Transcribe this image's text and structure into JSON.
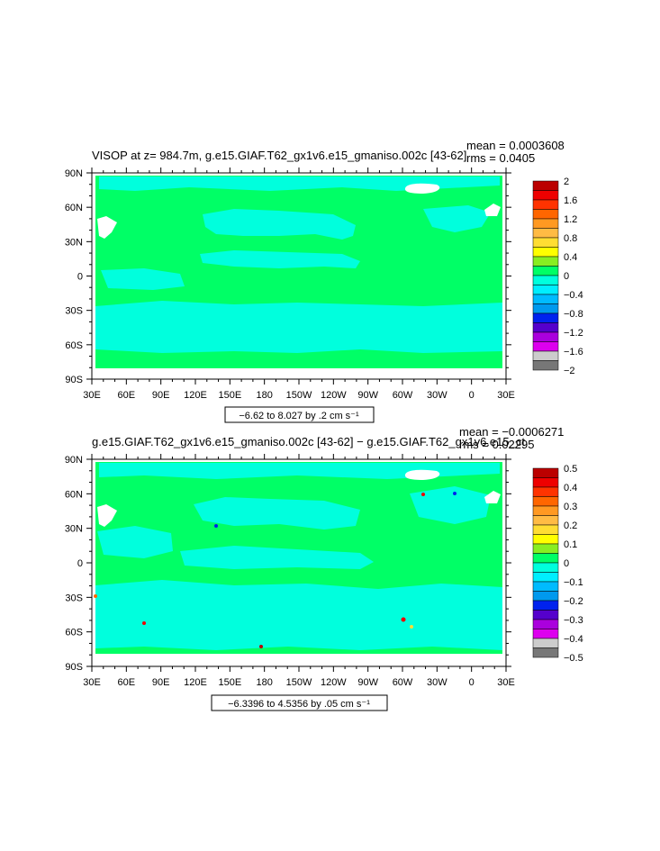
{
  "colors": {
    "green": "#00ff66",
    "cyan": "#00ffdd",
    "land": "#ffffff",
    "frame": "#000000"
  },
  "chart_data": [
    {
      "type": "heatmap",
      "title": "VISOP at z= 984.7m, g.e15.GIAF.T62_gx1v6.e15_gmaniso.002c [43-62]",
      "stats": {
        "mean": "mean = 0.0003608",
        "rms": "rms = 0.0405"
      },
      "range_label": "−6.62 to 8.027 by .2 cm s⁻¹",
      "x_ticks": [
        "30E",
        "60E",
        "90E",
        "120E",
        "150E",
        "180",
        "150W",
        "120W",
        "90W",
        "60W",
        "30W",
        "0",
        "30E"
      ],
      "y_ticks": [
        "90N",
        "60N",
        "30N",
        "0",
        "30S",
        "60S",
        "90S"
      ],
      "xlim": [
        30,
        390
      ],
      "ylim": [
        -90,
        90
      ],
      "colorbar": {
        "labels": [
          "2",
          "1.6",
          "1.2",
          "0.8",
          "0.4",
          "0",
          "−0.4",
          "−0.8",
          "−1.2",
          "−1.6",
          "−2"
        ],
        "colors": [
          "#bb0000",
          "#ee0000",
          "#ff3300",
          "#ff6600",
          "#ff9922",
          "#ffbb44",
          "#ffdd33",
          "#ffff00",
          "#88ee22",
          "#00ff66",
          "#00ffdd",
          "#00eeff",
          "#00bbff",
          "#0099ee",
          "#0022ee",
          "#5500cc",
          "#aa00dd",
          "#dd00ee",
          "#cccccc",
          "#777777"
        ]
      }
    },
    {
      "type": "heatmap",
      "title": "g.e15.GIAF.T62_gx1v6.e15_gmaniso.002c [43-62] − g.e15.GIAF.T62_gx1v6.e15_ct",
      "stats": {
        "mean": "mean = −0.0006271",
        "rms": "rms = 0.02295"
      },
      "range_label": "−6.3396 to 4.5356 by .05 cm s⁻¹",
      "x_ticks": [
        "30E",
        "60E",
        "90E",
        "120E",
        "150E",
        "180",
        "150W",
        "120W",
        "90W",
        "60W",
        "30W",
        "0",
        "30E"
      ],
      "y_ticks": [
        "90N",
        "60N",
        "30N",
        "0",
        "30S",
        "60S",
        "90S"
      ],
      "xlim": [
        30,
        390
      ],
      "ylim": [
        -90,
        90
      ],
      "colorbar": {
        "labels": [
          "0.5",
          "0.4",
          "0.3",
          "0.2",
          "0.1",
          "0",
          "−0.1",
          "−0.2",
          "−0.3",
          "−0.4",
          "−0.5"
        ],
        "colors": [
          "#bb0000",
          "#ee0000",
          "#ff3300",
          "#ff6600",
          "#ff9922",
          "#ffbb44",
          "#ffdd33",
          "#ffff00",
          "#88ee22",
          "#00ff66",
          "#00ffdd",
          "#00eeff",
          "#00bbff",
          "#0099ee",
          "#0022ee",
          "#5500cc",
          "#aa00dd",
          "#dd00ee",
          "#cccccc",
          "#777777"
        ]
      }
    }
  ]
}
